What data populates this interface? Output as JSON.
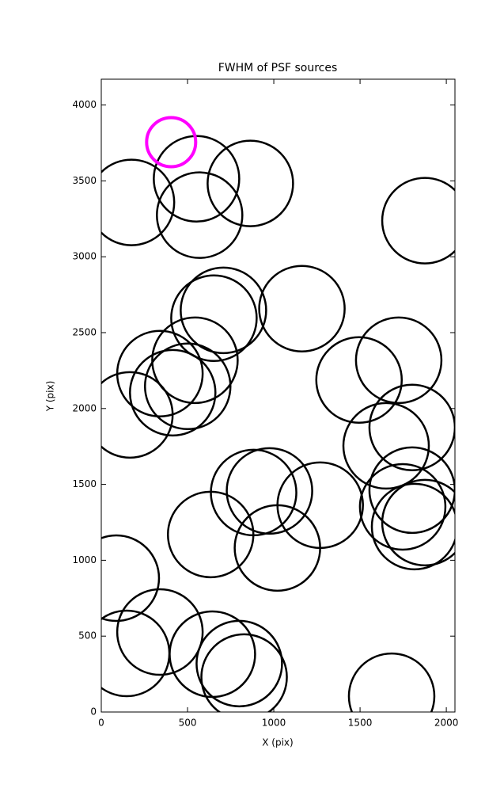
{
  "chart_data": {
    "type": "scatter",
    "title": "FWHM of PSF sources",
    "x_label": "X (pix)",
    "y_label": "Y (pix)",
    "xlim": [
      0,
      2050
    ],
    "ylim": [
      0,
      4170
    ],
    "xticks": [
      0,
      500,
      1000,
      1500,
      2000
    ],
    "yticks": [
      0,
      500,
      1000,
      1500,
      2000,
      2500,
      3000,
      3500,
      4000
    ],
    "grid": false,
    "series": [
      {
        "color": "#000000",
        "x": [
          175,
          552,
          864,
          570,
          1876,
          708,
          653,
          1163,
          340,
          543,
          501,
          414,
          166,
          1494,
          1724,
          1802,
          1651,
          1802,
          1747,
          1876,
          1816,
          883,
          975,
          1269,
          1021,
          634,
          87,
          340,
          147,
          644,
          800,
          828,
          1683
        ],
        "values": [
          3358,
          3514,
          3483,
          3274,
          3238,
          2647,
          2595,
          2658,
          2230,
          2318,
          2146,
          2104,
          1958,
          2188,
          2318,
          1875,
          1754,
          1462,
          1352,
          1248,
          1222,
          1446,
          1457,
          1363,
          1081,
          1170,
          882,
          527,
          386,
          381,
          319,
          230,
          104
        ]
      },
      {
        "color": "#ff00ff",
        "x": [
          405
        ],
        "values": [
          3755
        ]
      }
    ]
  }
}
